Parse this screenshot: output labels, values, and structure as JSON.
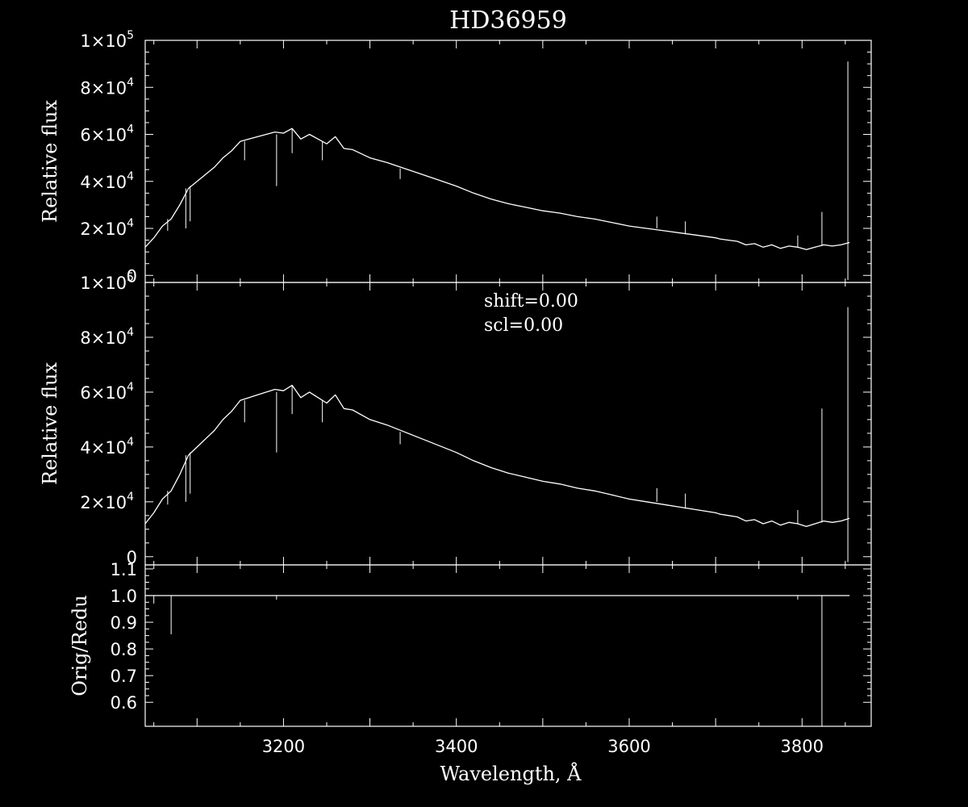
{
  "chart_data": [
    {
      "type": "line",
      "title": "HD36959",
      "ylabel": "Relative flux",
      "xlim": [
        3040,
        3880
      ],
      "ylim": [
        -3000,
        100000
      ],
      "ytick_labels": [
        "0",
        "2×10",
        "4×10",
        "6×10",
        "8×10",
        "1×10"
      ],
      "ytick_exps": [
        "",
        "4",
        "4",
        "4",
        "4",
        "5"
      ],
      "ytick_values": [
        0,
        20000,
        40000,
        60000,
        80000,
        100000
      ],
      "series": [
        {
          "x": [
            3040,
            3050,
            3060,
            3070,
            3080,
            3090,
            3100,
            3110,
            3120,
            3130,
            3140,
            3150,
            3160,
            3170,
            3180,
            3190,
            3200,
            3210,
            3220,
            3230,
            3240,
            3250,
            3260,
            3270,
            3280,
            3300,
            3320,
            3340,
            3360,
            3380,
            3400,
            3420,
            3440,
            3460,
            3480,
            3500,
            3520,
            3540,
            3560,
            3580,
            3600,
            3620,
            3640,
            3660,
            3680,
            3700,
            3705,
            3715,
            3725,
            3735,
            3745,
            3755,
            3765,
            3775,
            3785,
            3795,
            3805,
            3815,
            3825,
            3835,
            3845,
            3855
          ],
          "y": [
            12000,
            16000,
            21000,
            24000,
            30000,
            37000,
            40000,
            43000,
            46000,
            50000,
            53000,
            57000,
            58000,
            59000,
            60000,
            61000,
            60500,
            62500,
            58000,
            60000,
            58000,
            56000,
            59000,
            54000,
            53500,
            50000,
            48000,
            45500,
            43000,
            40500,
            38000,
            35000,
            32500,
            30500,
            29000,
            27500,
            26500,
            25000,
            24000,
            22500,
            21000,
            20000,
            19000,
            18000,
            17000,
            16000,
            15500,
            15000,
            14500,
            13000,
            13500,
            12000,
            13000,
            11500,
            12500,
            12000,
            11000,
            12000,
            13000,
            12500,
            13000,
            14000
          ]
        }
      ],
      "spikes": [
        {
          "x": 3066,
          "y": 24000,
          "to": 19000
        },
        {
          "x": 3087,
          "y": 37000,
          "to": 20000
        },
        {
          "x": 3092,
          "y": 38000,
          "to": 23000
        },
        {
          "x": 3155,
          "y": 57000,
          "to": 49000
        },
        {
          "x": 3192,
          "y": 60000,
          "to": 38000
        },
        {
          "x": 3210,
          "y": 62500,
          "to": 52000
        },
        {
          "x": 3245,
          "y": 57000,
          "to": 49000
        },
        {
          "x": 3335,
          "y": 45500,
          "to": 41000
        },
        {
          "x": 3632,
          "y": 20000,
          "to": 25000
        },
        {
          "x": 3665,
          "y": 17500,
          "to": 23000
        },
        {
          "x": 3795,
          "y": 12000,
          "to": 17000
        },
        {
          "x": 3823,
          "y": 12500,
          "to": 27000
        },
        {
          "x": 3853,
          "y": 14000,
          "to": 91000
        },
        {
          "x": 3853,
          "y": 14000,
          "to": -2000
        }
      ]
    },
    {
      "type": "line",
      "ylabel": "Relative flux",
      "annotations": [
        "shift=0.00",
        "scl=0.00"
      ],
      "xlim": [
        3040,
        3880
      ],
      "ylim": [
        -3000,
        100000
      ],
      "ytick_labels": [
        "0",
        "2×10",
        "4×10",
        "6×10",
        "8×10",
        "1×10"
      ],
      "ytick_exps": [
        "",
        "4",
        "4",
        "4",
        "4",
        "5"
      ],
      "ytick_values": [
        0,
        20000,
        40000,
        60000,
        80000,
        100000
      ],
      "series": [
        {
          "x": [
            3040,
            3050,
            3060,
            3070,
            3080,
            3090,
            3100,
            3110,
            3120,
            3130,
            3140,
            3150,
            3160,
            3170,
            3180,
            3190,
            3200,
            3210,
            3220,
            3230,
            3240,
            3250,
            3260,
            3270,
            3280,
            3300,
            3320,
            3340,
            3360,
            3380,
            3400,
            3420,
            3440,
            3460,
            3480,
            3500,
            3520,
            3540,
            3560,
            3580,
            3600,
            3620,
            3640,
            3660,
            3680,
            3700,
            3705,
            3715,
            3725,
            3735,
            3745,
            3755,
            3765,
            3775,
            3785,
            3795,
            3805,
            3815,
            3825,
            3835,
            3845,
            3855
          ],
          "y": [
            12000,
            16000,
            21000,
            24000,
            30000,
            37000,
            40000,
            43000,
            46000,
            50000,
            53000,
            57000,
            58000,
            59000,
            60000,
            61000,
            60500,
            62500,
            58000,
            60000,
            58000,
            56000,
            59000,
            54000,
            53500,
            50000,
            48000,
            45500,
            43000,
            40500,
            38000,
            35000,
            32500,
            30500,
            29000,
            27500,
            26500,
            25000,
            24000,
            22500,
            21000,
            20000,
            19000,
            18000,
            17000,
            16000,
            15500,
            15000,
            14500,
            13000,
            13500,
            12000,
            13000,
            11500,
            12500,
            12000,
            11000,
            12000,
            13000,
            12500,
            13000,
            14000
          ]
        }
      ],
      "spikes": [
        {
          "x": 3066,
          "y": 24000,
          "to": 19000
        },
        {
          "x": 3087,
          "y": 37000,
          "to": 20000
        },
        {
          "x": 3092,
          "y": 38000,
          "to": 23000
        },
        {
          "x": 3155,
          "y": 57000,
          "to": 49000
        },
        {
          "x": 3192,
          "y": 60000,
          "to": 38000
        },
        {
          "x": 3210,
          "y": 62500,
          "to": 52000
        },
        {
          "x": 3245,
          "y": 57000,
          "to": 49000
        },
        {
          "x": 3335,
          "y": 45500,
          "to": 41000
        },
        {
          "x": 3632,
          "y": 20000,
          "to": 25000
        },
        {
          "x": 3665,
          "y": 17500,
          "to": 23000
        },
        {
          "x": 3795,
          "y": 12000,
          "to": 17000
        },
        {
          "x": 3823,
          "y": 12500,
          "to": 54000
        },
        {
          "x": 3853,
          "y": 14000,
          "to": 91000
        },
        {
          "x": 3853,
          "y": 14000,
          "to": -2000
        }
      ]
    },
    {
      "type": "line",
      "ylabel": "Orig/Redu",
      "xlabel": "Wavelength, Å",
      "xlim": [
        3040,
        3880
      ],
      "ylim": [
        0.51,
        1.115
      ],
      "ytick_labels": [
        "0.6",
        "0.7",
        "0.8",
        "0.9",
        "1.0",
        "1.1"
      ],
      "ytick_values": [
        0.6,
        0.7,
        0.8,
        0.9,
        1.0,
        1.1
      ],
      "xtick_labels": [
        "3200",
        "3400",
        "3600",
        "3800"
      ],
      "xtick_values": [
        3200,
        3400,
        3600,
        3800
      ],
      "series": [
        {
          "x": [
            3040,
            3855
          ],
          "y": [
            1.0,
            1.0
          ]
        }
      ],
      "spikes": [
        {
          "x": 3050,
          "y": 1.0,
          "to": 0.97
        },
        {
          "x": 3070,
          "y": 1.0,
          "to": 0.855
        },
        {
          "x": 3192,
          "y": 1.0,
          "to": 0.985
        },
        {
          "x": 3795,
          "y": 1.0,
          "to": 0.985
        },
        {
          "x": 3823,
          "y": 1.0,
          "to": 0.51
        }
      ]
    }
  ]
}
